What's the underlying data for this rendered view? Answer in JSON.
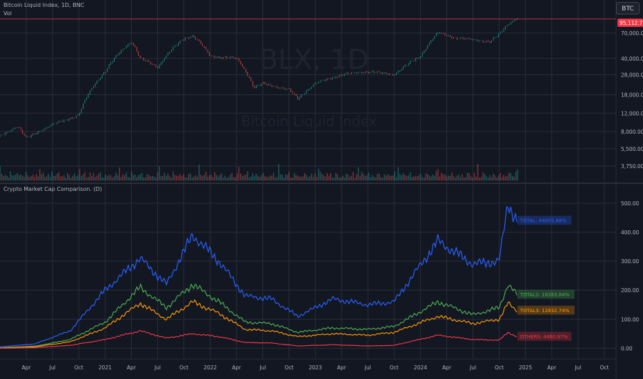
{
  "header": {
    "title": "Bitcoin Liquid Index, 1D, BNC",
    "vol_label": "Vol",
    "symbol_button": "BTC",
    "indicator_title": "Crypto Market Cap Comparison. (D)"
  },
  "watermark": {
    "symbol": "BLX, 1D",
    "name": "Bitcoin Liquid Index"
  },
  "colors": {
    "background": "#131722",
    "grid": "#2a2e39",
    "axis_text": "#b2b5be",
    "price_line": "#f23645",
    "candle_up": "#26a69a",
    "candle_down": "#ef5350",
    "total": "#2962ff",
    "total2": "#4caf50",
    "total3": "#ff9800",
    "others": "#f23645"
  },
  "chart_data": [
    {
      "type": "line",
      "title": "Bitcoin Liquid Index, 1D, BNC",
      "scale": "log",
      "ylim": [
        2900,
        110000
      ],
      "y_ticks": [
        "70,000.00",
        "40,000.00",
        "28,000.00",
        "18,000.00",
        "12,000.00",
        "8,000.00",
        "5,500.00",
        "3,750.00"
      ],
      "last_price": "95,112.72",
      "x": [
        "2020-01",
        "2020-03",
        "2020-04",
        "2020-07",
        "2020-10",
        "2021-01",
        "2021-04",
        "2021-05",
        "2021-07",
        "2021-10",
        "2021-11",
        "2022-01",
        "2022-04",
        "2022-06",
        "2022-07",
        "2022-10",
        "2022-11",
        "2023-01",
        "2023-04",
        "2023-07",
        "2023-10",
        "2024-01",
        "2024-03",
        "2024-05",
        "2024-07",
        "2024-09",
        "2024-10",
        "2024-11",
        "2024-12"
      ],
      "values": [
        7200,
        9000,
        6900,
        9300,
        11500,
        30000,
        58000,
        40000,
        33000,
        62000,
        66000,
        42000,
        40000,
        21000,
        23000,
        20000,
        16500,
        23000,
        28000,
        30000,
        28000,
        42000,
        70000,
        63000,
        60000,
        58000,
        68000,
        85000,
        97000
      ]
    },
    {
      "type": "line",
      "title": "Crypto Market Cap Comparison. (D)",
      "ylim": [
        -30,
        540
      ],
      "y_ticks": [
        "500.00",
        "400.00",
        "300.00",
        "200.00",
        "100.00",
        "0.00"
      ],
      "x_ticks": [
        "Apr",
        "Jul",
        "Oct",
        "2021",
        "Apr",
        "Jul",
        "Oct",
        "2022",
        "Apr",
        "Jul",
        "Oct",
        "2023",
        "Apr",
        "Jul",
        "Oct",
        "2024",
        "Apr",
        "Jul",
        "Oct",
        "2025",
        "Apr",
        "Jul",
        "Oct"
      ],
      "x": [
        "2020-01",
        "2020-05",
        "2020-09",
        "2021-01",
        "2021-05",
        "2021-08",
        "2021-11",
        "2022-02",
        "2022-05",
        "2022-08",
        "2022-11",
        "2023-03",
        "2023-07",
        "2023-10",
        "2024-03",
        "2024-07",
        "2024-10",
        "2024-11",
        "2024-12"
      ],
      "series": [
        {
          "name": "TOTAL",
          "label": "TOTAL: 44855.88%",
          "values": [
            5,
            15,
            60,
            200,
            310,
            220,
            390,
            300,
            180,
            170,
            110,
            170,
            150,
            160,
            370,
            290,
            300,
            500,
            440
          ]
        },
        {
          "name": "TOTAL2",
          "label": "TOTAL2: 18383.84%",
          "values": [
            2,
            7,
            30,
            90,
            210,
            140,
            220,
            160,
            90,
            85,
            55,
            70,
            65,
            75,
            160,
            115,
            140,
            220,
            185
          ]
        },
        {
          "name": "TOTAL3",
          "label": "TOTAL3: 12832.74%",
          "values": [
            1,
            5,
            22,
            70,
            155,
            100,
            160,
            120,
            65,
            60,
            40,
            50,
            45,
            55,
            110,
            85,
            100,
            155,
            130
          ]
        },
        {
          "name": "OTHERS",
          "label": "OTHERS: 4480.97%",
          "values": [
            0,
            2,
            10,
            30,
            60,
            35,
            50,
            40,
            20,
            18,
            8,
            12,
            8,
            10,
            45,
            30,
            28,
            55,
            40
          ]
        }
      ]
    }
  ]
}
